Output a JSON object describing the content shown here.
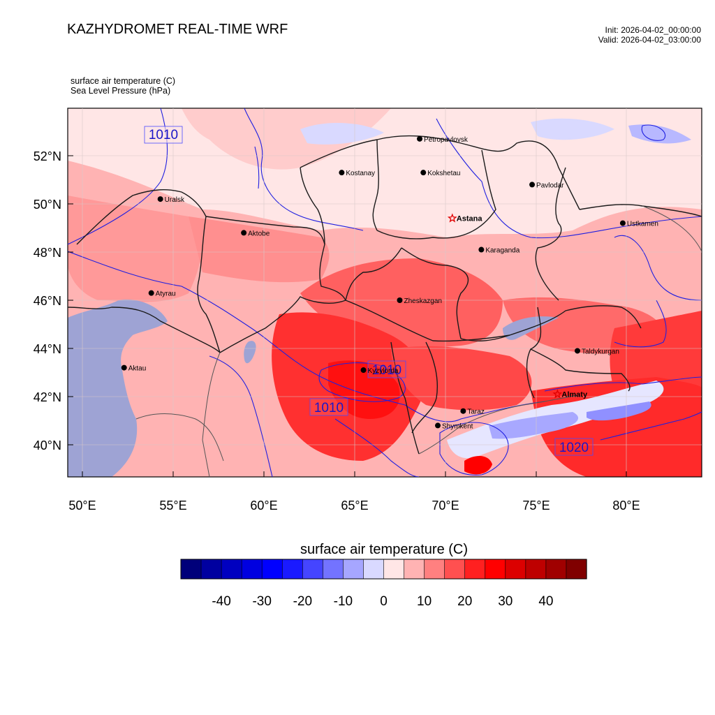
{
  "header": {
    "title": "KAZHYDROMET REAL-TIME WRF",
    "init": "Init: 2026-04-02_00:00:00",
    "valid": "Valid: 2026-04-02_03:00:00"
  },
  "fields": {
    "temperature": "surface air temperature   (C)",
    "pressure": "Sea Level Pressure   (hPa)"
  },
  "axes": {
    "lat_labels": [
      "52°N",
      "50°N",
      "48°N",
      "46°N",
      "44°N",
      "42°N",
      "40°N"
    ],
    "lon_labels": [
      "50°E",
      "55°E",
      "60°E",
      "65°E",
      "70°E",
      "75°E",
      "80°E"
    ]
  },
  "cities": [
    {
      "name": "Petropavlovsk",
      "lon": 68.6,
      "lat": 52.7,
      "marker": "dot"
    },
    {
      "name": "Kostanay",
      "lon": 64.3,
      "lat": 51.3,
      "marker": "dot"
    },
    {
      "name": "Kokshetau",
      "lon": 68.8,
      "lat": 51.3,
      "marker": "dot"
    },
    {
      "name": "Pavlodar",
      "lon": 74.8,
      "lat": 50.8,
      "marker": "dot"
    },
    {
      "name": "Uralsk",
      "lon": 54.3,
      "lat": 50.2,
      "marker": "dot"
    },
    {
      "name": "Astana",
      "lon": 70.4,
      "lat": 49.4,
      "marker": "star",
      "bold": true
    },
    {
      "name": "Ustkamen",
      "lon": 79.8,
      "lat": 49.2,
      "marker": "dot"
    },
    {
      "name": "Aktobe",
      "lon": 58.9,
      "lat": 48.8,
      "marker": "dot"
    },
    {
      "name": "Karaganda",
      "lon": 72.0,
      "lat": 48.1,
      "marker": "dot"
    },
    {
      "name": "Atyrau",
      "lon": 53.8,
      "lat": 46.3,
      "marker": "dot"
    },
    {
      "name": "Zheskazgan",
      "lon": 67.5,
      "lat": 46.0,
      "marker": "dot"
    },
    {
      "name": "Taldykurgan",
      "lon": 77.3,
      "lat": 43.9,
      "marker": "dot"
    },
    {
      "name": "Aktau",
      "lon": 52.3,
      "lat": 43.2,
      "marker": "dot"
    },
    {
      "name": "Kyzylorda",
      "lon": 65.5,
      "lat": 43.1,
      "marker": "dot"
    },
    {
      "name": "Almaty",
      "lon": 76.2,
      "lat": 42.1,
      "marker": "star",
      "bold": true
    },
    {
      "name": "Taraz",
      "lon": 71.0,
      "lat": 41.4,
      "marker": "dot"
    },
    {
      "name": "Shymkent",
      "lon": 69.6,
      "lat": 40.8,
      "marker": "dot"
    }
  ],
  "isobar_labels": [
    "1010",
    "1010",
    "1010",
    "1020"
  ],
  "colorbar": {
    "title": "surface air temperature  (C)",
    "ticks": [
      "-40",
      "-30",
      "-20",
      "-10",
      "0",
      "10",
      "20",
      "30",
      "40"
    ],
    "colors": [
      "#00007a",
      "#0000a0",
      "#0000c0",
      "#0000e0",
      "#0000ff",
      "#1a1aff",
      "#4545ff",
      "#7373ff",
      "#a6a6ff",
      "#d9d9ff",
      "#ffe6e6",
      "#ffb3b3",
      "#ff8080",
      "#ff5050",
      "#ff2020",
      "#ff0000",
      "#dc0000",
      "#be0000",
      "#a00000",
      "#800000"
    ]
  }
}
